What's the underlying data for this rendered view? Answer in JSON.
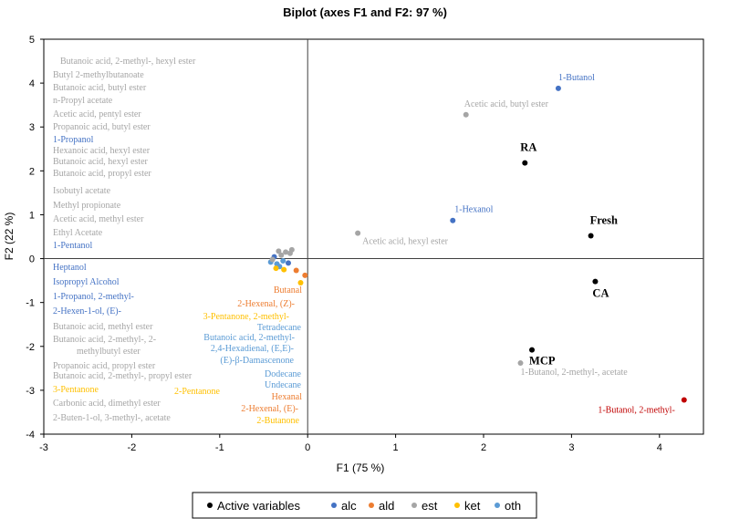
{
  "chart_data": {
    "type": "scatter",
    "title": "Biplot (axes F1 and F2: 97 %)",
    "xlabel": "F1 (75 %)",
    "ylabel": "F2 (22 %)",
    "xlim": [
      -3,
      4.5
    ],
    "ylim": [
      -4,
      5
    ],
    "xticks": [
      -3,
      -2,
      -1,
      0,
      1,
      2,
      3,
      4
    ],
    "yticks": [
      -4,
      -3,
      -2,
      -1,
      0,
      1,
      2,
      3,
      4,
      5
    ],
    "colors": {
      "active": "#000000",
      "alc": "#4472C4",
      "ald": "#ED7D31",
      "est": "#A5A5A5",
      "ket": "#FFC000",
      "oth": "#5B9BD5",
      "red": "#C00000",
      "axis": "#000000",
      "zero": "#404040"
    },
    "legend": [
      {
        "key": "active",
        "label": "Active variables"
      },
      {
        "key": "alc",
        "label": "alc"
      },
      {
        "key": "ald",
        "label": "ald"
      },
      {
        "key": "est",
        "label": "est"
      },
      {
        "key": "ket",
        "label": "ket"
      },
      {
        "key": "oth",
        "label": "oth"
      }
    ],
    "active_variables": [
      {
        "name": "RA",
        "x": 2.47,
        "y": 2.18
      },
      {
        "name": "Fresh",
        "x": 3.22,
        "y": 0.52
      },
      {
        "name": "CA",
        "x": 3.27,
        "y": -0.52
      },
      {
        "name": "MCP",
        "x": 2.55,
        "y": -2.08
      }
    ],
    "points": [
      {
        "label": "1-Butanol",
        "x": 2.85,
        "y": 3.88,
        "group": "alc"
      },
      {
        "label": "Acetic acid, butyl ester",
        "x": 1.8,
        "y": 3.28,
        "group": "est"
      },
      {
        "label": "1-Hexanol",
        "x": 1.65,
        "y": 0.87,
        "group": "alc"
      },
      {
        "label": "Acetic acid, hexyl ester",
        "x": 0.57,
        "y": 0.58,
        "group": "est"
      },
      {
        "label": "1-Butanol, 2-methyl-, acetate",
        "x": 2.42,
        "y": -2.38,
        "group": "est"
      },
      {
        "label": "1-Butanol, 2-methyl-",
        "x": 4.28,
        "y": -3.22,
        "group": "red"
      },
      {
        "label": "",
        "x": -0.42,
        "y": -0.08,
        "group": "oth"
      },
      {
        "label": "",
        "x": -0.38,
        "y": 0.04,
        "group": "alc"
      },
      {
        "label": "",
        "x": -0.35,
        "y": -0.12,
        "group": "oth"
      },
      {
        "label": "",
        "x": -0.3,
        "y": 0.08,
        "group": "est"
      },
      {
        "label": "",
        "x": -0.25,
        "y": 0.15,
        "group": "est"
      },
      {
        "label": "",
        "x": -0.2,
        "y": 0.12,
        "group": "est"
      },
      {
        "label": "",
        "x": -0.18,
        "y": 0.2,
        "group": "est"
      },
      {
        "label": "",
        "x": -0.33,
        "y": 0.17,
        "group": "est"
      },
      {
        "label": "",
        "x": -0.28,
        "y": -0.05,
        "group": "oth"
      },
      {
        "label": "",
        "x": -0.22,
        "y": -0.1,
        "group": "alc"
      },
      {
        "label": "",
        "x": -0.32,
        "y": -0.18,
        "group": "oth"
      },
      {
        "label": "",
        "x": -0.27,
        "y": -0.25,
        "group": "ket"
      },
      {
        "label": "",
        "x": -0.13,
        "y": -0.27,
        "group": "ald"
      },
      {
        "label": "",
        "x": -0.03,
        "y": -0.38,
        "group": "ald"
      },
      {
        "label": "",
        "x": -0.08,
        "y": -0.55,
        "group": "ket"
      },
      {
        "label": "",
        "x": -0.4,
        "y": -0.02,
        "group": "est"
      },
      {
        "label": "",
        "x": -0.36,
        "y": -0.22,
        "group": "ket"
      }
    ],
    "cluster_labels_left": [
      {
        "text": "Butanoic acid, 2-methyl-, hexyl ester",
        "group": "est"
      },
      {
        "text": "Butyl 2-methylbutanoate",
        "group": "est"
      },
      {
        "text": "Butanoic acid, butyl ester",
        "group": "est"
      },
      {
        "text": "n-Propyl acetate",
        "group": "est"
      },
      {
        "text": "Acetic acid, pentyl ester",
        "group": "est"
      },
      {
        "text": "Propanoic acid, butyl ester",
        "group": "est"
      },
      {
        "text": "1-Propanol",
        "group": "alc"
      },
      {
        "text": "Hexanoic acid, hexyl ester",
        "group": "est"
      },
      {
        "text": "Butanoic acid, hexyl ester",
        "group": "est"
      },
      {
        "text": "Butanoic acid, propyl ester",
        "group": "est"
      },
      {
        "text": "Isobutyl acetate",
        "group": "est"
      },
      {
        "text": "Methyl propionate",
        "group": "est"
      },
      {
        "text": "Acetic acid, methyl ester",
        "group": "est"
      },
      {
        "text": "Ethyl Acetate",
        "group": "est"
      },
      {
        "text": "1-Pentanol",
        "group": "alc"
      },
      {
        "text": "Heptanol",
        "group": "alc"
      },
      {
        "text": "Isopropyl Alcohol",
        "group": "alc"
      },
      {
        "text": "1-Propanol, 2-methyl-",
        "group": "alc"
      },
      {
        "text": "2-Hexen-1-ol, (E)-",
        "group": "alc"
      },
      {
        "text": "Butanoic acid, methyl ester",
        "group": "est"
      },
      {
        "text": "Butanoic acid, 2-methyl-, 2-",
        "group": "est"
      },
      {
        "text": "methylbutyl ester",
        "group": "est"
      },
      {
        "text": "Propanoic acid, propyl ester",
        "group": "est"
      },
      {
        "text": "3-Pentanone",
        "group": "ket"
      },
      {
        "text": "Butanoic acid, 2-methyl-, propyl ester",
        "group": "est"
      },
      {
        "text": "Carbonic acid, dimethyl ester",
        "group": "est"
      },
      {
        "text": "2-Buten-1-ol, 3-methyl-, acetate",
        "group": "est"
      }
    ],
    "cluster_labels_right": [
      {
        "text": "Butanal",
        "group": "ald"
      },
      {
        "text": "2-Hexenal, (Z)-",
        "group": "ald"
      },
      {
        "text": "3-Pentanone, 2-methyl-",
        "group": "ket"
      },
      {
        "text": "Tetradecane",
        "group": "oth"
      },
      {
        "text": "Butanoic acid, 2-methyl-",
        "group": "oth"
      },
      {
        "text": "2,4-Hexadienal, (E,E)-",
        "group": "oth"
      },
      {
        "text": "(E)-β-Damascenone",
        "group": "oth"
      },
      {
        "text": "Dodecane",
        "group": "oth"
      },
      {
        "text": "Undecane",
        "group": "oth"
      },
      {
        "text": "2-Pentanone",
        "group": "ket"
      },
      {
        "text": "Hexanal",
        "group": "ald"
      },
      {
        "text": "2-Hexenal, (E)-",
        "group": "ald"
      },
      {
        "text": "2-Butanone",
        "group": "ket"
      }
    ]
  }
}
